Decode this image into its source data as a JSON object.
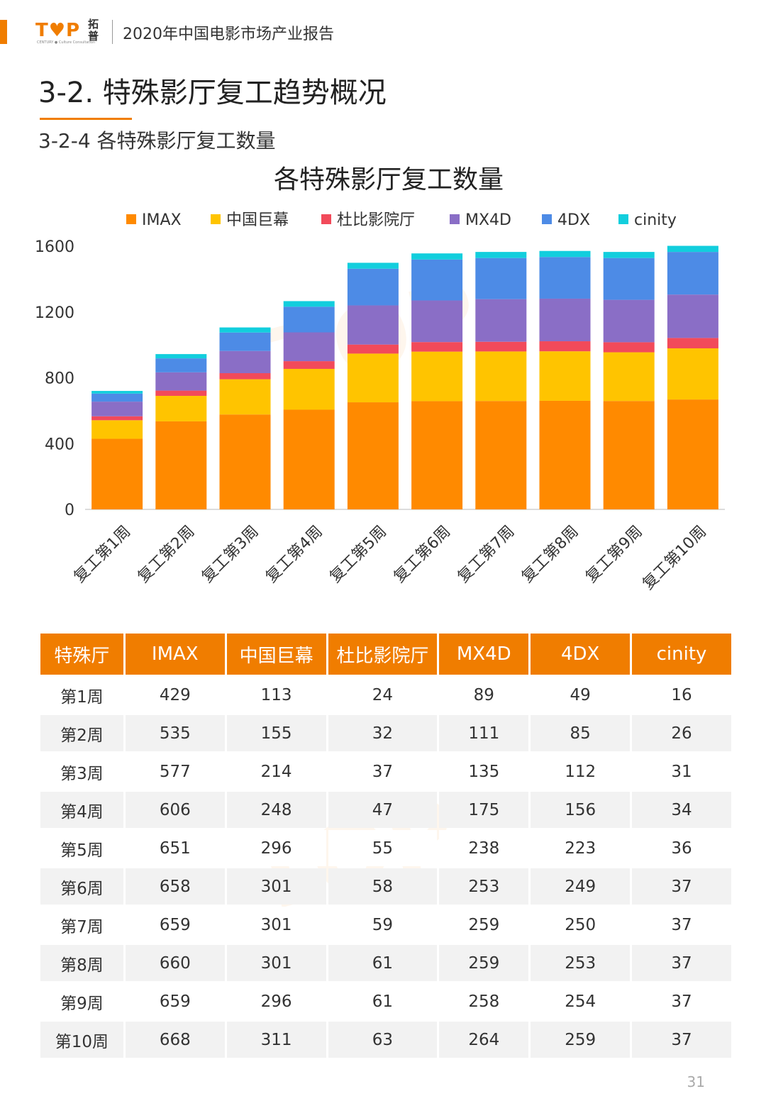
{
  "header": {
    "logo_text": "T♥P",
    "logo_cn": "拓普",
    "logo_sub": "CENTURY ● Culture Consultation",
    "title": "2020年中国电影市场产业报告"
  },
  "section": {
    "title": "3-2.  特殊影厅复工趋势概况",
    "subtitle": "3-2-4 各特殊影厅复工数量"
  },
  "colors": {
    "accent": "#f07d00",
    "IMAX": "#ff8a00",
    "中国巨幕": "#ffc400",
    "杜比影院厅": "#f24a5a",
    "MX4D": "#8a6ec6",
    "4DX": "#4d8be6",
    "cinity": "#12cedd"
  },
  "chart_data": {
    "type": "bar",
    "stacked": true,
    "title": "各特殊影厅复工数量",
    "xlabel": "",
    "ylabel": "",
    "ylim": [
      0,
      1600
    ],
    "yticks": [
      0,
      400,
      800,
      1200,
      1600
    ],
    "grid": false,
    "legend_position": "top",
    "categories": [
      "复工第1周",
      "复工第2周",
      "复工第3周",
      "复工第4周",
      "复工第5周",
      "复工第6周",
      "复工第7周",
      "复工第8周",
      "复工第9周",
      "复工第10周"
    ],
    "series": [
      {
        "name": "IMAX",
        "values": [
          429,
          535,
          577,
          606,
          651,
          658,
          659,
          660,
          659,
          668
        ]
      },
      {
        "name": "中国巨幕",
        "values": [
          113,
          155,
          214,
          248,
          296,
          301,
          301,
          301,
          296,
          311
        ]
      },
      {
        "name": "杜比影院厅",
        "values": [
          24,
          32,
          37,
          47,
          55,
          58,
          59,
          61,
          61,
          63
        ]
      },
      {
        "name": "MX4D",
        "values": [
          89,
          111,
          135,
          175,
          238,
          253,
          259,
          259,
          258,
          264
        ]
      },
      {
        "name": "4DX",
        "values": [
          49,
          85,
          112,
          156,
          223,
          249,
          250,
          253,
          254,
          259
        ]
      },
      {
        "name": "cinity",
        "values": [
          16,
          26,
          31,
          34,
          36,
          37,
          37,
          37,
          37,
          37
        ]
      }
    ]
  },
  "table": {
    "headers": [
      "特殊厅",
      "IMAX",
      "中国巨幕",
      "杜比影院厅",
      "MX4D",
      "4DX",
      "cinity"
    ],
    "rows": [
      [
        "第1周",
        "429",
        "113",
        "24",
        "89",
        "49",
        "16"
      ],
      [
        "第2周",
        "535",
        "155",
        "32",
        "111",
        "85",
        "26"
      ],
      [
        "第3周",
        "577",
        "214",
        "37",
        "135",
        "112",
        "31"
      ],
      [
        "第4周",
        "606",
        "248",
        "47",
        "175",
        "156",
        "34"
      ],
      [
        "第5周",
        "651",
        "296",
        "55",
        "238",
        "223",
        "36"
      ],
      [
        "第6周",
        "658",
        "301",
        "58",
        "253",
        "249",
        "37"
      ],
      [
        "第7周",
        "659",
        "301",
        "59",
        "259",
        "250",
        "37"
      ],
      [
        "第8周",
        "660",
        "301",
        "61",
        "259",
        "253",
        "37"
      ],
      [
        "第9周",
        "659",
        "296",
        "61",
        "258",
        "254",
        "37"
      ],
      [
        "第10周",
        "668",
        "311",
        "63",
        "264",
        "259",
        "37"
      ]
    ]
  },
  "page_number": "31"
}
